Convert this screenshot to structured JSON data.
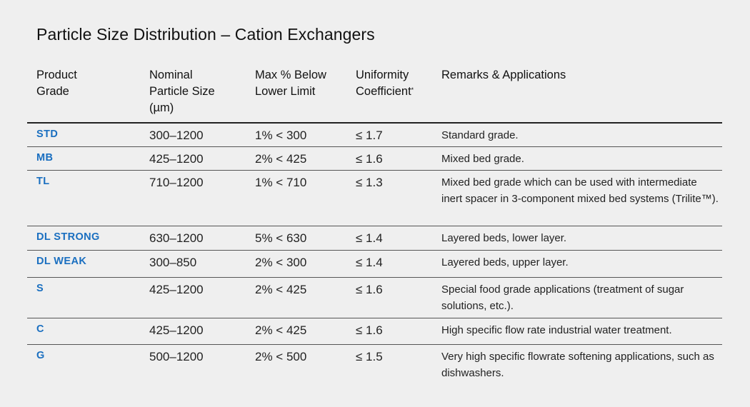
{
  "title": "Particle Size Distribution – Cation Exchangers",
  "table": {
    "headers": [
      "Product\nGrade",
      "Nominal\nParticle Size\n(µm)",
      "Max % Below\nLower Limit",
      "Uniformity\nCoefficient",
      "Remarks & Applications"
    ],
    "header_footnote_mark": "*",
    "rows": [
      {
        "grade": "STD",
        "size": "300–1200",
        "below": "1% < 300",
        "uc": "≤ 1.7",
        "remarks": "Standard grade."
      },
      {
        "grade": "MB",
        "size": "425–1200",
        "below": "2% < 425",
        "uc": "≤ 1.6",
        "remarks": "Mixed bed grade."
      },
      {
        "grade": "TL",
        "size": "710–1200",
        "below": "1% < 710",
        "uc": "≤ 1.3",
        "remarks": "Mixed bed grade which can be used with intermediate inert spacer in 3-component mixed bed systems (Trilite™)."
      },
      {
        "grade": "DL STRONG",
        "size": "630–1200",
        "below": "5% < 630",
        "uc": "≤ 1.4",
        "remarks": "Layered beds, lower layer."
      },
      {
        "grade": "DL WEAK",
        "size": "300–850",
        "below": "2% < 300",
        "uc": "≤ 1.4",
        "remarks": "Layered beds, upper layer."
      },
      {
        "grade": "S",
        "size": "425–1200",
        "below": "2% < 425",
        "uc": "≤ 1.6",
        "remarks": "Special food grade applications (treatment of sugar solutions, etc.)."
      },
      {
        "grade": "C",
        "size": "425–1200",
        "below": "2% < 425",
        "uc": "≤ 1.6",
        "remarks": "High specific flow rate industrial water treatment."
      },
      {
        "grade": "G",
        "size": "500–1200",
        "below": "2% < 500",
        "uc": "≤ 1.5",
        "remarks": "Very high specific flowrate softening applications, such as dishwashers."
      }
    ]
  },
  "colors": {
    "background": "#efefef",
    "grade_accent": "#1a6fc0",
    "text": "#222222"
  }
}
